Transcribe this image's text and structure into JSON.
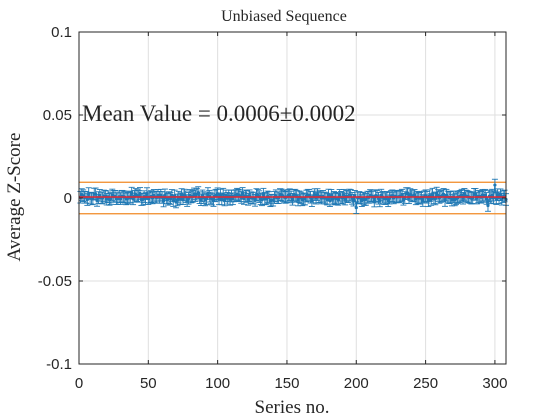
{
  "chart_data": {
    "type": "scatter",
    "title": "Unbiased Sequence",
    "xlabel": "Series no.",
    "ylabel": "Average Z-Score",
    "annotation": "Mean Value = 0.0006±0.0002",
    "xlim": [
      0,
      308
    ],
    "ylim": [
      -0.1,
      0.1
    ],
    "xticks": [
      0,
      50,
      100,
      150,
      200,
      250,
      300
    ],
    "xtick_labels": [
      "0",
      "50",
      "100",
      "150",
      "200",
      "250",
      "300"
    ],
    "yticks": [
      -0.1,
      -0.05,
      0,
      0.05,
      0.1
    ],
    "ytick_labels": [
      "-0.1",
      "-0.05",
      "0",
      "0.05",
      "0.1"
    ],
    "grid": true,
    "series_count": 308,
    "series_amplitude": 0.0032,
    "error_bar": 0.0035,
    "mean_value": 0.0006,
    "upper_band": 0.0095,
    "lower_band": -0.0095,
    "colors": {
      "points": "#1f78b4",
      "mean_line": "#e8252f",
      "band": "#f08a24",
      "grid": "#dfdfdf",
      "axis": "#262626"
    }
  }
}
